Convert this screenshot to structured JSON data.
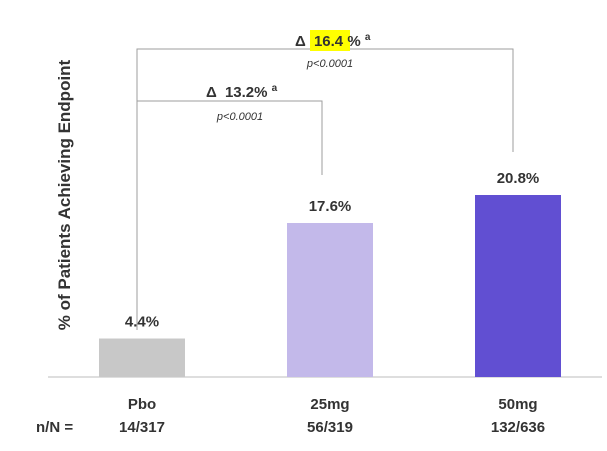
{
  "chart_data": {
    "type": "bar",
    "ylabel": "% of Patients Achieving Endpoint",
    "categories": [
      "Pbo",
      "25mg",
      "50mg"
    ],
    "values": [
      4.4,
      17.6,
      20.8
    ],
    "value_labels": [
      "4.4%",
      "17.6%",
      "20.8%"
    ],
    "n_prefix": "n/N =",
    "n_labels": [
      "14/317",
      "56/319",
      "132/636"
    ],
    "ylim": [
      0,
      25
    ],
    "grid": false,
    "legend": "none",
    "colors": [
      "#c8c8c8",
      "#c3b9ea",
      "#614fd2"
    ],
    "comparisons": [
      {
        "from": "Pbo",
        "to": "25mg",
        "delta_symbol": "Δ",
        "delta": "13.2%",
        "superscript": "a",
        "p": "p<0.0001",
        "highlight": false
      },
      {
        "from": "Pbo",
        "to": "50mg",
        "delta_symbol": "Δ",
        "delta_num": "16.4",
        "delta_unit": "%",
        "superscript": "a",
        "p": "p<0.0001",
        "highlight": true,
        "highlight_color": "#ffff00"
      }
    ]
  }
}
